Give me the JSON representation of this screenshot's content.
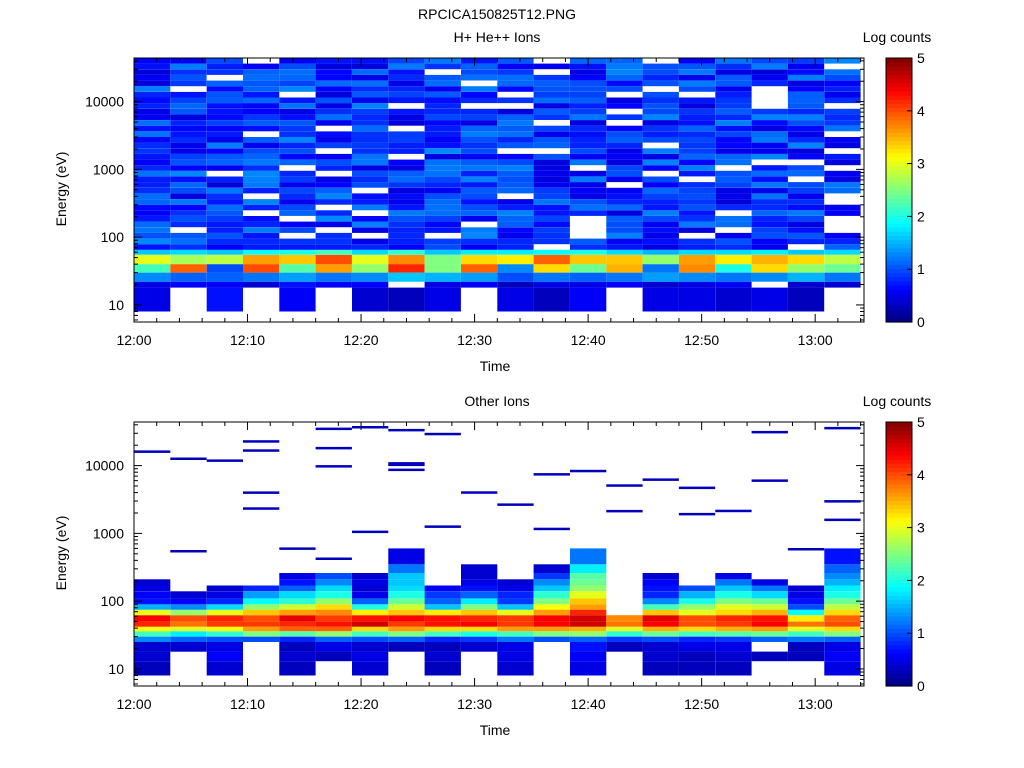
{
  "figure_title": "RPCICA150825T12.PNG",
  "chart_data": [
    {
      "type": "heatmap",
      "title": "H+ He++ Ions",
      "xlabel": "Time",
      "ylabel": "Energy (eV)",
      "colorbar_label": "Log counts",
      "x_ticks": [
        "12:00",
        "12:10",
        "12:20",
        "12:30",
        "12:40",
        "12:50",
        "13:00"
      ],
      "x_range_minutes": [
        0,
        64.3
      ],
      "y_scale": "log",
      "y_range": [
        5.6,
        44000
      ],
      "y_ticks": [
        10,
        100,
        1000,
        10000
      ],
      "y_tick_labels": [
        "10",
        "100",
        "1000",
        "10000"
      ],
      "color_range": [
        0,
        5
      ],
      "color_ticks": [
        "0",
        "1",
        "2",
        "3",
        "4",
        "5"
      ],
      "grid": false,
      "colormap": "jet",
      "time_columns_minutes": [
        0,
        3.2,
        6.4,
        9.6,
        12.8,
        16.0,
        19.2,
        22.4,
        25.6,
        28.8,
        32.0,
        35.2,
        38.4,
        41.6,
        44.8,
        48.0,
        51.2,
        54.4,
        57.6,
        60.8
      ],
      "column_width_minutes": 3.2,
      "energy_bands_eV": [
        {
          "band": "8-18",
          "log_counts": [
            0.5,
            null,
            0.7,
            null,
            0.6,
            null,
            0.4,
            0.3,
            0.5,
            null,
            0.5,
            0.3,
            0.6,
            null,
            0.5,
            0.5,
            0.4,
            0.5,
            0.3,
            null
          ]
        },
        {
          "band": "18-22",
          "log_counts": [
            0.5,
            0.6,
            0.6,
            0.4,
            0.7,
            0.6,
            0.6,
            null,
            0.5,
            0.6,
            0.3,
            0.5,
            0.5,
            0.6,
            0.4,
            0.5,
            0.6,
            null,
            0.4,
            0.4
          ]
        },
        {
          "band": "22-30",
          "log_counts": [
            1.3,
            1.1,
            1.1,
            1.2,
            1.4,
            1.2,
            1.3,
            1.6,
            1.5,
            1.4,
            1.0,
            1.2,
            1.1,
            1.2,
            1.4,
            1.3,
            1.2,
            1.3,
            1.5,
            1.2
          ]
        },
        {
          "band": "30-40",
          "log_counts": [
            2.2,
            3.9,
            1.0,
            4.0,
            2.3,
            3.6,
            2.6,
            4.2,
            2.5,
            3.9,
            1.3,
            3.3,
            2.4,
            3.5,
            1.2,
            3.7,
            2.0,
            3.3,
            2.6,
            2.4
          ]
        },
        {
          "band": "40-55",
          "log_counts": [
            3.0,
            2.7,
            2.8,
            3.6,
            3.4,
            4.0,
            3.0,
            3.7,
            2.5,
            3.3,
            3.2,
            3.9,
            3.4,
            3.4,
            2.6,
            3.6,
            3.2,
            3.5,
            3.3,
            2.8
          ]
        },
        {
          "band": "55-65",
          "log_counts": [
            1.6,
            1.7,
            1.6,
            1.9,
            2.0,
            2.2,
            1.7,
            2.1,
            1.6,
            1.8,
            1.8,
            1.9,
            2.0,
            1.7,
            1.5,
            1.7,
            1.7,
            1.8,
            1.6,
            1.7
          ]
        }
      ],
      "upper_background_log_counts": "approximately 0.5 to 1.3 (dark to mid blue) from 65 eV to 44000 eV with scattered empty bins"
    },
    {
      "type": "heatmap",
      "title": "Other Ions",
      "xlabel": "Time",
      "ylabel": "Energy (eV)",
      "colorbar_label": "Log counts",
      "x_ticks": [
        "12:00",
        "12:10",
        "12:20",
        "12:30",
        "12:40",
        "12:50",
        "13:00"
      ],
      "x_range_minutes": [
        0,
        64.3
      ],
      "y_scale": "log",
      "y_range": [
        5.6,
        44000
      ],
      "y_ticks": [
        10,
        100,
        1000,
        10000
      ],
      "y_tick_labels": [
        "10",
        "100",
        "1000",
        "10000"
      ],
      "color_range": [
        0,
        5
      ],
      "color_ticks": [
        "0",
        "1",
        "2",
        "3",
        "4",
        "5"
      ],
      "grid": false,
      "colormap": "jet",
      "time_columns_minutes": [
        0,
        3.2,
        6.4,
        9.6,
        12.8,
        16.0,
        19.2,
        22.4,
        25.6,
        28.8,
        32.0,
        35.2,
        38.4,
        41.6,
        44.8,
        48.0,
        51.2,
        54.4,
        57.6,
        60.8
      ],
      "column_width_minutes": 3.2,
      "energy_bands_eV": [
        {
          "band": "8-13",
          "log_counts": [
            0.3,
            null,
            0.4,
            null,
            0.3,
            null,
            0.4,
            null,
            0.3,
            null,
            0.4,
            null,
            0.5,
            null,
            0.3,
            0.3,
            0.3,
            null,
            null,
            0.5
          ]
        },
        {
          "band": "13-18",
          "log_counts": [
            0.4,
            null,
            0.6,
            null,
            0.4,
            0.3,
            0.5,
            null,
            0.4,
            null,
            0.5,
            null,
            0.6,
            null,
            0.4,
            0.3,
            0.4,
            0.3,
            0.3,
            0.6
          ]
        },
        {
          "band": "18-25",
          "log_counts": [
            0.4,
            0.4,
            0.5,
            null,
            0.3,
            0.5,
            0.4,
            0.3,
            0.3,
            0.4,
            0.5,
            null,
            0.7,
            0.3,
            0.4,
            0.5,
            0.5,
            null,
            0.3,
            0.5
          ]
        },
        {
          "band": "25-30",
          "log_counts": [
            1.3,
            1.1,
            1.0,
            1.0,
            0.8,
            1.1,
            1.0,
            1.1,
            0.8,
            0.9,
            1.2,
            1.0,
            1.1,
            0.9,
            1.0,
            0.8,
            0.9,
            1.1,
            1.2,
            1.1
          ]
        },
        {
          "band": "30-36",
          "log_counts": [
            2.2,
            1.8,
            2.1,
            2.5,
            2.3,
            2.6,
            2.2,
            2.5,
            2.2,
            2.0,
            2.2,
            2.5,
            2.6,
            2.1,
            2.4,
            2.2,
            2.3,
            2.4,
            2.2,
            2.5
          ]
        },
        {
          "band": "36-42",
          "log_counts": [
            3.1,
            3.0,
            3.1,
            3.6,
            3.9,
            3.9,
            3.3,
            3.6,
            3.3,
            3.3,
            3.6,
            3.6,
            3.5,
            3.0,
            3.5,
            3.3,
            3.5,
            3.6,
            3.0,
            3.3
          ]
        },
        {
          "band": "42-50",
          "log_counts": [
            4.2,
            3.8,
            4.1,
            4.1,
            4.2,
            4.3,
            4.6,
            4.1,
            4.3,
            4.4,
            4.1,
            4.4,
            4.6,
            3.8,
            4.4,
            4.0,
            4.1,
            4.4,
            3.8,
            4.0
          ]
        },
        {
          "band": "50-62",
          "log_counts": [
            4.4,
            4.0,
            4.2,
            4.0,
            4.5,
            4.1,
            4.3,
            4.4,
            4.3,
            4.2,
            4.1,
            4.4,
            4.6,
            3.7,
            4.5,
            4.0,
            4.2,
            4.3,
            3.2,
            3.9
          ]
        },
        {
          "band": "62-75",
          "log_counts": [
            3.0,
            2.6,
            3.0,
            3.4,
            3.6,
            3.7,
            3.2,
            3.4,
            3.2,
            3.4,
            3.0,
            3.6,
            4.2,
            null,
            3.4,
            3.0,
            3.3,
            3.5,
            1.9,
            3.3
          ]
        },
        {
          "band": "75-90",
          "log_counts": [
            1.5,
            1.3,
            1.7,
            2.6,
            2.9,
            3.3,
            2.0,
            2.9,
            1.6,
            2.5,
            1.6,
            3.1,
            3.6,
            null,
            2.2,
            2.6,
            3.0,
            2.9,
            1.0,
            2.8
          ]
        },
        {
          "band": "90-110",
          "log_counts": [
            0.7,
            0.6,
            0.8,
            1.9,
            2.1,
            2.6,
            1.1,
            2.4,
            1.1,
            1.8,
            0.9,
            2.5,
            3.4,
            null,
            1.3,
            2.0,
            2.5,
            2.4,
            0.7,
            2.4
          ]
        },
        {
          "band": "110-140",
          "log_counts": [
            0.6,
            0.4,
            0.5,
            1.4,
            1.7,
            2.0,
            0.5,
            2.0,
            0.9,
            1.1,
            0.8,
            2.1,
            3.0,
            null,
            0.8,
            1.5,
            2.0,
            1.7,
            0.5,
            2.0
          ]
        },
        {
          "band": "140-170",
          "log_counts": [
            0.5,
            null,
            0.4,
            0.8,
            1.1,
            1.7,
            0.4,
            1.7,
            0.6,
            0.7,
            0.5,
            1.6,
            2.6,
            null,
            0.7,
            1.0,
            1.6,
            1.2,
            0.4,
            1.8
          ]
        },
        {
          "band": "170-210",
          "log_counts": [
            0.4,
            null,
            null,
            null,
            0.7,
            1.3,
            0.5,
            1.6,
            null,
            0.5,
            0.4,
            1.3,
            2.4,
            null,
            0.6,
            null,
            1.2,
            0.5,
            null,
            1.5
          ]
        },
        {
          "band": "210-260",
          "log_counts": [
            null,
            null,
            null,
            null,
            0.5,
            1.0,
            0.4,
            1.6,
            null,
            0.4,
            null,
            0.9,
            2.3,
            null,
            0.4,
            null,
            0.5,
            null,
            null,
            1.3
          ]
        },
        {
          "band": "260-350",
          "log_counts": [
            null,
            null,
            null,
            null,
            null,
            null,
            null,
            1.2,
            null,
            0.4,
            null,
            0.4,
            1.8,
            null,
            null,
            null,
            null,
            null,
            null,
            1.1
          ]
        },
        {
          "band": "350-600",
          "log_counts": [
            null,
            null,
            null,
            null,
            null,
            null,
            null,
            0.5,
            null,
            null,
            null,
            null,
            1.2,
            null,
            null,
            null,
            null,
            null,
            null,
            0.7
          ]
        }
      ],
      "high_energy_isolated_detections": "thin dark-blue lines (log counts about 0.3) scattered between roughly 270 eV and 38000 eV"
    }
  ]
}
